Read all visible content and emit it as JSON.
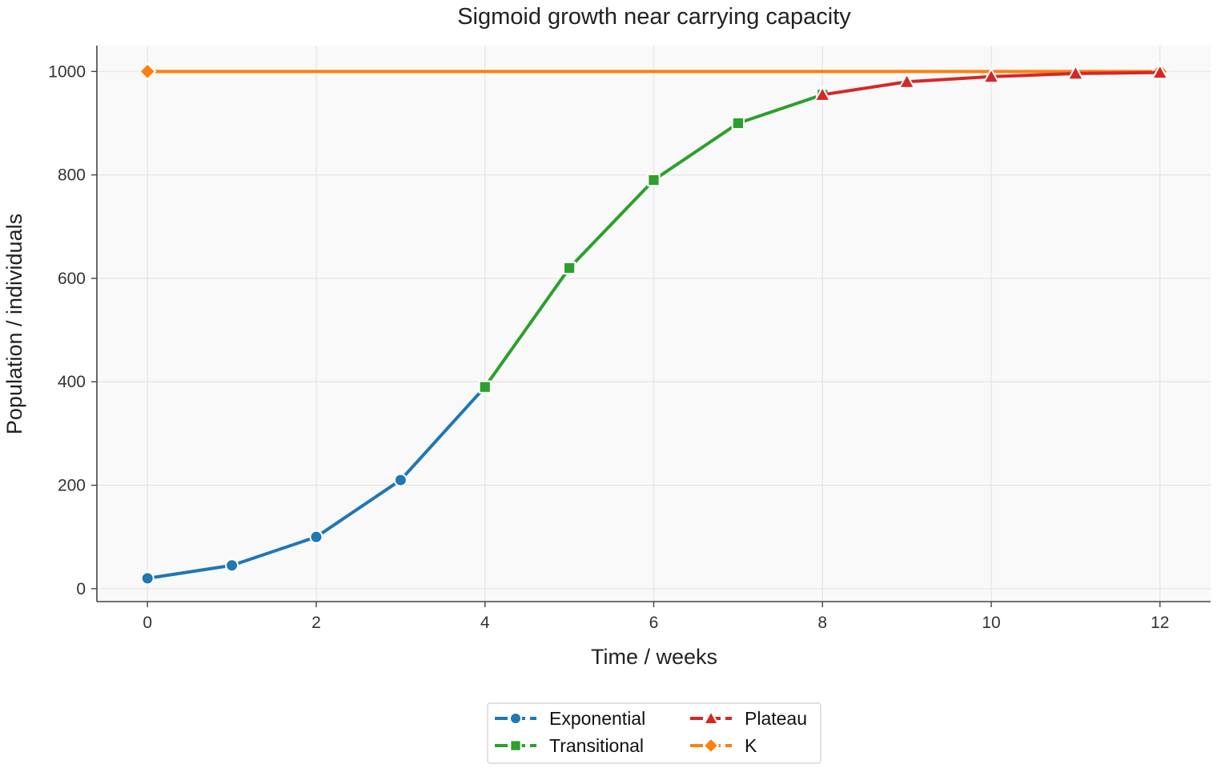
{
  "chart_data": {
    "type": "line",
    "title": "Sigmoid growth near carrying capacity",
    "xlabel": "Time / weeks",
    "ylabel": "Population / individuals",
    "xlim": [
      -0.6,
      12.6
    ],
    "ylim": [
      -25,
      1050
    ],
    "x_ticks": [
      0,
      2,
      4,
      6,
      8,
      10,
      12
    ],
    "y_ticks": [
      0,
      200,
      400,
      600,
      800,
      1000
    ],
    "grid": true,
    "legend_position": "bottom-center",
    "series": [
      {
        "name": "Exponential",
        "color": "#1f77b4",
        "marker": "circle",
        "x": [
          0,
          1,
          2,
          3,
          4
        ],
        "y": [
          20,
          45,
          100,
          210,
          390
        ]
      },
      {
        "name": "Transitional",
        "color": "#2ca02c",
        "marker": "square",
        "x": [
          4,
          5,
          6,
          7,
          8
        ],
        "y": [
          390,
          620,
          790,
          900,
          955
        ]
      },
      {
        "name": "Plateau",
        "color": "#d62728",
        "marker": "triangle",
        "x": [
          8,
          9,
          10,
          11,
          12
        ],
        "y": [
          955,
          980,
          990,
          996,
          998
        ]
      },
      {
        "name": "K",
        "color": "#ff7f0e",
        "marker": "diamond",
        "x": [
          0,
          12
        ],
        "y": [
          1000,
          1000
        ]
      }
    ]
  }
}
